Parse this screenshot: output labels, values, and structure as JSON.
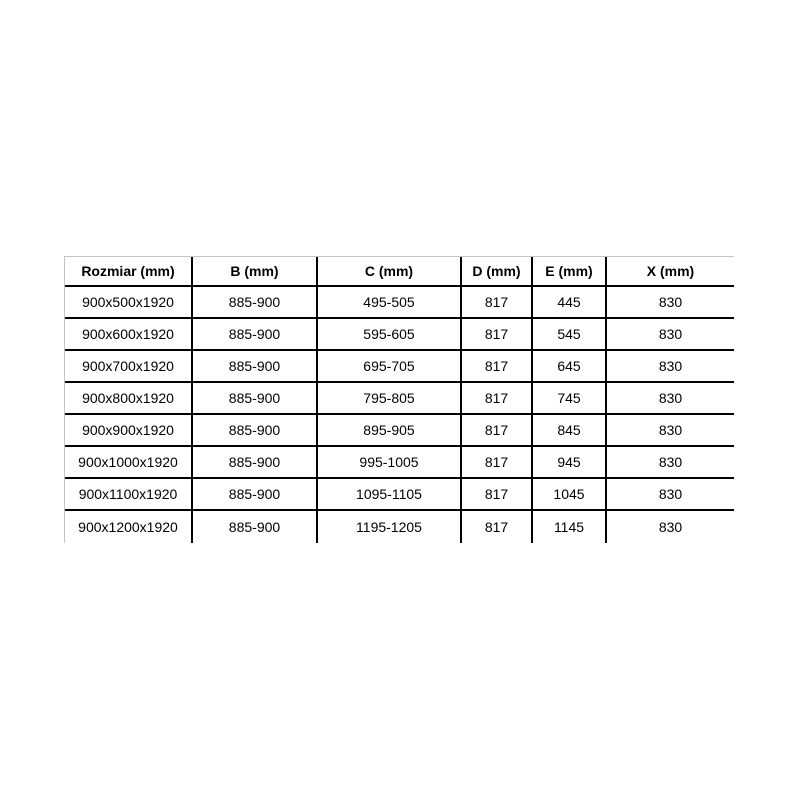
{
  "style": {
    "background": "#ffffff",
    "grid_line_color": "#000000",
    "outer_border_color": "#c4c4c4",
    "text_color": "#000000"
  },
  "chart_data": {
    "type": "table",
    "columns": [
      "Rozmiar (mm)",
      "B (mm)",
      "C (mm)",
      "D (mm)",
      "E (mm)",
      "X (mm)"
    ],
    "rows": [
      [
        "900x500x1920",
        "885-900",
        "495-505",
        "817",
        "445",
        "830"
      ],
      [
        "900x600x1920",
        "885-900",
        "595-605",
        "817",
        "545",
        "830"
      ],
      [
        "900x700x1920",
        "885-900",
        "695-705",
        "817",
        "645",
        "830"
      ],
      [
        "900x800x1920",
        "885-900",
        "795-805",
        "817",
        "745",
        "830"
      ],
      [
        "900x900x1920",
        "885-900",
        "895-905",
        "817",
        "845",
        "830"
      ],
      [
        "900x1000x1920",
        "885-900",
        "995-1005",
        "817",
        "945",
        "830"
      ],
      [
        "900x1100x1920",
        "885-900",
        "1095-1105",
        "817",
        "1045",
        "830"
      ],
      [
        "900x1200x1920",
        "885-900",
        "1195-1205",
        "817",
        "1145",
        "830"
      ]
    ]
  }
}
